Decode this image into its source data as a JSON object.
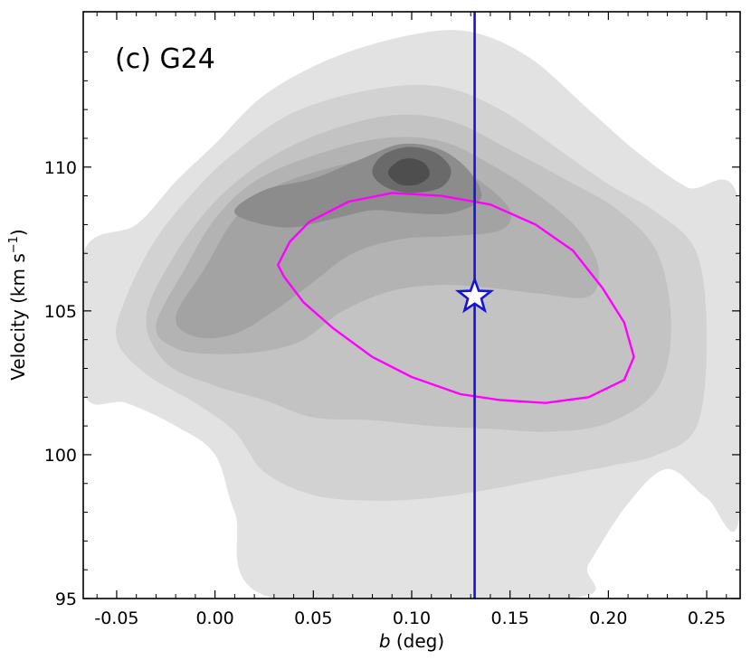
{
  "chart_data": {
    "type": "contour",
    "title": "",
    "panel_label": "(c) G24",
    "xlabel_var": "b",
    "xlabel_unit": " (deg)",
    "ylabel_main": "Velocity (km s",
    "ylabel_sup": "−1",
    "ylabel_close": ")",
    "xlim": [
      -0.067,
      0.267
    ],
    "ylim": [
      95,
      115.4
    ],
    "x_ticks": [
      -0.05,
      0.0,
      0.05,
      0.1,
      0.15,
      0.2,
      0.25
    ],
    "x_tick_labels": [
      "-0.05",
      "0.00",
      "0.05",
      "0.10",
      "0.15",
      "0.20",
      "0.25"
    ],
    "y_ticks": [
      95,
      100,
      105,
      110
    ],
    "y_tick_labels": [
      "95",
      "100",
      "105",
      "110"
    ],
    "grid": false,
    "vertical_line": {
      "x": 0.132,
      "color": "#1414d8"
    },
    "star_marker": {
      "x": 0.132,
      "y": 105.5,
      "fill": "#ffffff",
      "stroke": "#1414d8"
    },
    "ellipse": {
      "color": "#ff00ff",
      "points": [
        [
          0.035,
          106.2
        ],
        [
          0.032,
          106.6
        ],
        [
          0.038,
          107.4
        ],
        [
          0.048,
          108.1
        ],
        [
          0.068,
          108.8
        ],
        [
          0.09,
          109.1
        ],
        [
          0.115,
          109.0
        ],
        [
          0.14,
          108.7
        ],
        [
          0.163,
          108.0
        ],
        [
          0.182,
          107.1
        ],
        [
          0.197,
          105.8
        ],
        [
          0.208,
          104.6
        ],
        [
          0.213,
          103.4
        ],
        [
          0.208,
          102.6
        ],
        [
          0.19,
          102.0
        ],
        [
          0.168,
          101.8
        ],
        [
          0.145,
          101.9
        ],
        [
          0.125,
          102.1
        ],
        [
          0.1,
          102.7
        ],
        [
          0.08,
          103.4
        ],
        [
          0.06,
          104.4
        ],
        [
          0.045,
          105.3
        ],
        [
          0.035,
          106.2
        ]
      ]
    },
    "contour_levels": [
      {
        "level": 1,
        "color": "#e2e2e2",
        "points": [
          [
            -0.067,
            107.0
          ],
          [
            -0.04,
            108.0
          ],
          [
            -0.02,
            109.5
          ],
          [
            0.0,
            110.8
          ],
          [
            0.025,
            112.5
          ],
          [
            0.06,
            113.8
          ],
          [
            0.1,
            114.6
          ],
          [
            0.13,
            114.7
          ],
          [
            0.16,
            113.8
          ],
          [
            0.19,
            112.0
          ],
          [
            0.215,
            110.5
          ],
          [
            0.24,
            109.3
          ],
          [
            0.267,
            108.6
          ],
          [
            0.267,
            98.0
          ],
          [
            0.25,
            98.5
          ],
          [
            0.23,
            99.5
          ],
          [
            0.21,
            98.3
          ],
          [
            0.19,
            96.2
          ],
          [
            0.18,
            95.0
          ],
          [
            0.03,
            95.0
          ],
          [
            0.01,
            98.0
          ],
          [
            0.0,
            100.0
          ],
          [
            -0.02,
            101.0
          ],
          [
            -0.045,
            101.8
          ],
          [
            -0.067,
            102.2
          ]
        ]
      },
      {
        "level": 2,
        "color": "#d2d2d2",
        "points": [
          [
            -0.045,
            105.5
          ],
          [
            -0.03,
            107.5
          ],
          [
            -0.01,
            109.2
          ],
          [
            0.01,
            110.5
          ],
          [
            0.04,
            111.9
          ],
          [
            0.08,
            112.7
          ],
          [
            0.115,
            112.8
          ],
          [
            0.145,
            112.0
          ],
          [
            0.175,
            110.6
          ],
          [
            0.2,
            109.4
          ],
          [
            0.225,
            108.4
          ],
          [
            0.245,
            107.0
          ],
          [
            0.25,
            104.0
          ],
          [
            0.245,
            101.0
          ],
          [
            0.225,
            100.0
          ],
          [
            0.2,
            99.6
          ],
          [
            0.17,
            99.2
          ],
          [
            0.14,
            98.8
          ],
          [
            0.11,
            98.5
          ],
          [
            0.08,
            98.4
          ],
          [
            0.05,
            98.6
          ],
          [
            0.025,
            99.4
          ],
          [
            0.01,
            100.8
          ],
          [
            -0.01,
            101.8
          ],
          [
            -0.035,
            102.8
          ],
          [
            -0.05,
            104.0
          ]
        ]
      },
      {
        "level": 3,
        "color": "#c3c3c3",
        "points": [
          [
            -0.035,
            104.8
          ],
          [
            -0.02,
            107.0
          ],
          [
            0.0,
            108.8
          ],
          [
            0.025,
            110.2
          ],
          [
            0.055,
            111.2
          ],
          [
            0.09,
            111.8
          ],
          [
            0.12,
            111.6
          ],
          [
            0.15,
            110.6
          ],
          [
            0.18,
            109.5
          ],
          [
            0.205,
            108.5
          ],
          [
            0.225,
            107.0
          ],
          [
            0.232,
            104.5
          ],
          [
            0.225,
            102.3
          ],
          [
            0.2,
            101.1
          ],
          [
            0.17,
            100.8
          ],
          [
            0.14,
            100.9
          ],
          [
            0.11,
            101.0
          ],
          [
            0.08,
            101.2
          ],
          [
            0.05,
            101.3
          ],
          [
            0.025,
            101.9
          ],
          [
            0.0,
            102.4
          ],
          [
            -0.025,
            103.2
          ]
        ]
      },
      {
        "level": 4,
        "color": "#b3b3b3",
        "points": [
          [
            -0.03,
            104.5
          ],
          [
            -0.015,
            106.5
          ],
          [
            0.0,
            108.2
          ],
          [
            0.02,
            109.5
          ],
          [
            0.05,
            110.4
          ],
          [
            0.085,
            111.0
          ],
          [
            0.115,
            110.9
          ],
          [
            0.14,
            110.1
          ],
          [
            0.165,
            109.0
          ],
          [
            0.185,
            107.8
          ],
          [
            0.195,
            106.5
          ],
          [
            0.19,
            105.5
          ],
          [
            0.165,
            105.6
          ],
          [
            0.14,
            105.8
          ],
          [
            0.115,
            105.9
          ],
          [
            0.09,
            105.7
          ],
          [
            0.065,
            105.0
          ],
          [
            0.045,
            104.0
          ],
          [
            0.025,
            103.6
          ],
          [
            0.0,
            103.5
          ],
          [
            -0.02,
            103.7
          ]
        ]
      },
      {
        "level": 5,
        "color": "#a3a3a3",
        "points": [
          [
            -0.02,
            104.8
          ],
          [
            -0.005,
            106.5
          ],
          [
            0.01,
            108.2
          ],
          [
            0.03,
            109.3
          ],
          [
            0.06,
            110.0
          ],
          [
            0.09,
            110.4
          ],
          [
            0.115,
            110.2
          ],
          [
            0.135,
            109.5
          ],
          [
            0.15,
            108.5
          ],
          [
            0.145,
            107.8
          ],
          [
            0.12,
            107.6
          ],
          [
            0.095,
            107.5
          ],
          [
            0.07,
            107.0
          ],
          [
            0.05,
            106.0
          ],
          [
            0.03,
            105.0
          ],
          [
            0.01,
            104.2
          ],
          [
            -0.01,
            104.1
          ]
        ]
      },
      {
        "level": 6,
        "color": "#8c8c8c",
        "points": [
          [
            0.01,
            108.4
          ],
          [
            0.025,
            109.2
          ],
          [
            0.05,
            109.6
          ],
          [
            0.075,
            110.3
          ],
          [
            0.095,
            110.8
          ],
          [
            0.115,
            110.6
          ],
          [
            0.13,
            109.8
          ],
          [
            0.135,
            108.9
          ],
          [
            0.12,
            108.4
          ],
          [
            0.1,
            108.4
          ],
          [
            0.08,
            108.5
          ],
          [
            0.06,
            108.2
          ],
          [
            0.035,
            107.9
          ]
        ]
      },
      {
        "level": 7,
        "color": "#6a6a6a",
        "points": [
          [
            0.08,
            109.8
          ],
          [
            0.085,
            110.4
          ],
          [
            0.098,
            110.7
          ],
          [
            0.112,
            110.5
          ],
          [
            0.12,
            109.9
          ],
          [
            0.115,
            109.3
          ],
          [
            0.1,
            109.1
          ],
          [
            0.087,
            109.3
          ]
        ]
      },
      {
        "level": 8,
        "color": "#4e4e4e",
        "points": [
          [
            0.088,
            109.8
          ],
          [
            0.093,
            110.2
          ],
          [
            0.1,
            110.3
          ],
          [
            0.107,
            110.1
          ],
          [
            0.109,
            109.7
          ],
          [
            0.103,
            109.4
          ],
          [
            0.094,
            109.4
          ]
        ]
      }
    ]
  }
}
